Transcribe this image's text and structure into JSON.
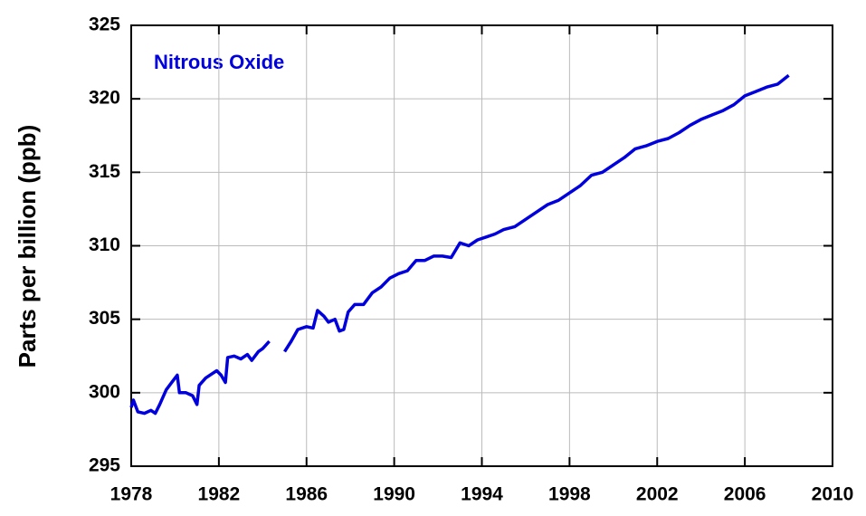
{
  "chart_data": {
    "type": "line",
    "title": "Nitrous Oxide",
    "y_label": "Parts per billion (ppb)",
    "x": [
      1978.0,
      1978.1,
      1978.3,
      1978.6,
      1978.9,
      1979.1,
      1979.3,
      1979.6,
      1979.9,
      1980.1,
      1980.2,
      1980.5,
      1980.8,
      1981.0,
      1981.1,
      1981.4,
      1981.7,
      1981.9,
      1982.1,
      1982.3,
      1982.4,
      1982.7,
      1983.0,
      1983.3,
      1983.5,
      1983.8,
      1984.0,
      1984.3,
      1984.65,
      1985.0,
      1985.3,
      1985.6,
      1986.0,
      1986.3,
      1986.5,
      1986.8,
      1987.0,
      1987.3,
      1987.5,
      1987.7,
      1987.9,
      1988.2,
      1988.6,
      1989.0,
      1989.4,
      1989.8,
      1990.2,
      1990.6,
      1991.0,
      1991.4,
      1991.8,
      1992.2,
      1992.6,
      1993.0,
      1993.4,
      1993.8,
      1994.2,
      1994.6,
      1995.0,
      1995.5,
      1996.0,
      1996.5,
      1997.0,
      1997.5,
      1998.0,
      1998.5,
      1999.0,
      1999.5,
      2000.0,
      2000.5,
      2001.0,
      2001.5,
      2002.0,
      2002.5,
      2003.0,
      2003.5,
      2004.0,
      2004.5,
      2005.0,
      2005.5,
      2006.0,
      2006.5,
      2007.0,
      2007.5,
      2008.0
    ],
    "series": [
      {
        "name": "Nitrous Oxide",
        "color": "#0000dd",
        "values": [
          299.0,
          299.5,
          298.7,
          298.6,
          298.8,
          298.6,
          299.2,
          300.2,
          300.8,
          301.2,
          300.0,
          300.0,
          299.8,
          299.2,
          300.5,
          301.0,
          301.3,
          301.5,
          301.2,
          300.7,
          302.4,
          302.5,
          302.3,
          302.6,
          302.2,
          302.8,
          303.0,
          303.5,
          null,
          302.8,
          303.5,
          304.3,
          304.5,
          304.4,
          305.6,
          305.2,
          304.8,
          305.0,
          304.2,
          304.3,
          305.5,
          306.0,
          306.0,
          306.8,
          307.2,
          307.8,
          308.1,
          308.3,
          309.0,
          309.0,
          309.3,
          309.3,
          309.2,
          310.2,
          310.0,
          310.4,
          310.6,
          310.8,
          311.1,
          311.3,
          311.8,
          312.3,
          312.8,
          313.1,
          313.6,
          314.1,
          314.8,
          315.0,
          315.5,
          316.0,
          316.6,
          316.8,
          317.1,
          317.3,
          317.7,
          318.2,
          318.6,
          318.9,
          319.2,
          319.6,
          320.2,
          320.5,
          320.8,
          321.0,
          321.6
        ]
      }
    ],
    "xlim": [
      1978,
      2010
    ],
    "xticks": [
      1978,
      1982,
      1986,
      1990,
      1994,
      1998,
      2002,
      2006,
      2010
    ],
    "ylim": [
      295,
      325
    ],
    "yticks": [
      295,
      300,
      305,
      310,
      315,
      320,
      325
    ],
    "grid": true
  }
}
